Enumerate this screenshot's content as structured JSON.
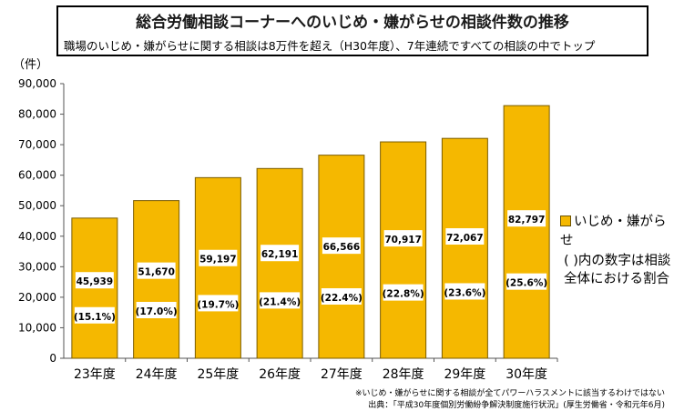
{
  "header": {
    "title": "総合労働相談コーナーへのいじめ・嫌がらせの相談件数の推移",
    "subtitle": "職場のいじめ・嫌がらせに関する相談は8万件を超え（H30年度）、7年連続ですべての相談の中でトップ"
  },
  "colors": {
    "bar": "#F5B800",
    "bar_border": "#7a5c00",
    "label_box": "#ffffff"
  },
  "legend": {
    "label": "いじめ・嫌がらせ",
    "note": "( )内の数字は相談全体における割合"
  },
  "footer": {
    "note": "※いじめ・嫌がらせに関する相談が全てパワーハラスメントに該当するわけではない",
    "source": "出典：「平成30年度個別労働紛争解決制度施行状況」(厚生労働省・令和元年6月)"
  },
  "chart_data": {
    "type": "bar",
    "unit_label": "（件）",
    "categories": [
      "23年度",
      "24年度",
      "25年度",
      "26年度",
      "27年度",
      "28年度",
      "29年度",
      "30年度"
    ],
    "values": [
      45939,
      51670,
      59197,
      62191,
      66566,
      70917,
      72067,
      82797
    ],
    "value_labels": [
      "45,939",
      "51,670",
      "59,197",
      "62,191",
      "66,566",
      "70,917",
      "72,067",
      "82,797"
    ],
    "share_labels": [
      "(15.1%)",
      "(17.0%)",
      "(19.7%)",
      "(21.4%)",
      "(22.4%)",
      "(22.8%)",
      "(23.6%)",
      "(25.6%)"
    ],
    "yticks": [
      "0",
      "10,000",
      "20,000",
      "30,000",
      "40,000",
      "50,000",
      "60,000",
      "70,000",
      "80,000",
      "90,000"
    ],
    "ylim": [
      0,
      90000
    ],
    "grid": false,
    "legend_position": "right"
  }
}
